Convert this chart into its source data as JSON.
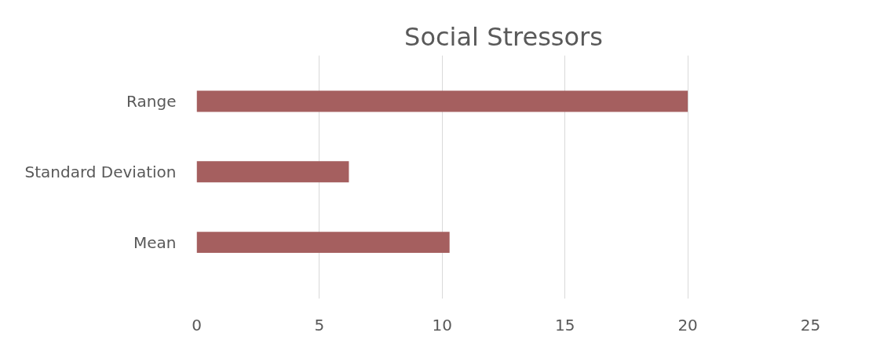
{
  "chart_data": {
    "type": "bar",
    "title": "Social Stressors",
    "orientation": "horizontal",
    "categories": [
      "Range",
      "Standard Deviation",
      "Mean"
    ],
    "values": [
      20,
      6.2,
      10.3
    ],
    "color": "#a55f5f",
    "xlim": [
      0,
      25
    ],
    "xticks": [
      0,
      5,
      10,
      15,
      20,
      25
    ],
    "grid": "x"
  }
}
